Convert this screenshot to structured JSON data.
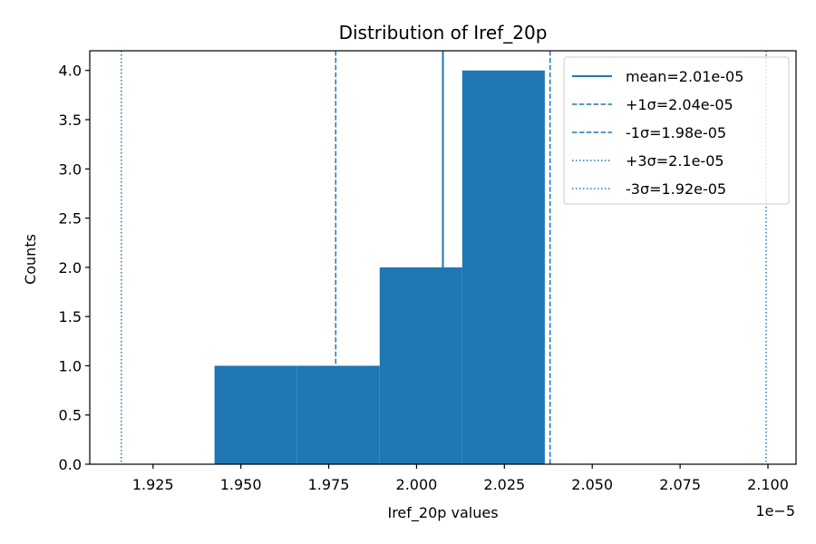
{
  "chart_data": {
    "type": "histogram",
    "title": "Distribution of Iref_20p",
    "xlabel": "Iref_20p values",
    "ylabel": "Counts",
    "x_offset_label": "1e−5",
    "xlim": [
      1.907,
      2.108
    ],
    "ylim": [
      0,
      4.2
    ],
    "x_ticks": [
      1.925,
      1.95,
      1.975,
      2.0,
      2.025,
      2.05,
      2.075,
      2.1
    ],
    "x_tick_labels": [
      "1.925",
      "1.950",
      "1.975",
      "2.000",
      "2.025",
      "2.050",
      "2.075",
      "2.100"
    ],
    "y_ticks": [
      0,
      0.5,
      1,
      1.5,
      2,
      2.5,
      3,
      3.5,
      4
    ],
    "y_tick_labels": [
      "0.0",
      "0.5",
      "1.0",
      "1.5",
      "2.0",
      "2.5",
      "3.0",
      "3.5",
      "4.0"
    ],
    "bins": [
      {
        "x0": 1.9425,
        "x1": 1.966,
        "count": 1
      },
      {
        "x0": 1.966,
        "x1": 1.9895,
        "count": 1
      },
      {
        "x0": 1.9895,
        "x1": 2.013,
        "count": 2
      },
      {
        "x0": 2.013,
        "x1": 2.0365,
        "count": 4
      }
    ],
    "bar_color": "#1f77b4",
    "reference_lines": [
      {
        "label": "mean=2.01e-05",
        "x": 2.0075,
        "style": "solid"
      },
      {
        "label": "+1σ=2.04e-05",
        "x": 2.038,
        "style": "dashed"
      },
      {
        "label": "-1σ=1.98e-05",
        "x": 1.977,
        "style": "dashed"
      },
      {
        "label": "+3σ=2.1e-05",
        "x": 2.0995,
        "style": "dotted"
      },
      {
        "label": "-3σ=1.92e-05",
        "x": 1.916,
        "style": "dotted"
      }
    ],
    "line_color": "#1f77b4",
    "legend_position": "top-right",
    "grid": false
  }
}
